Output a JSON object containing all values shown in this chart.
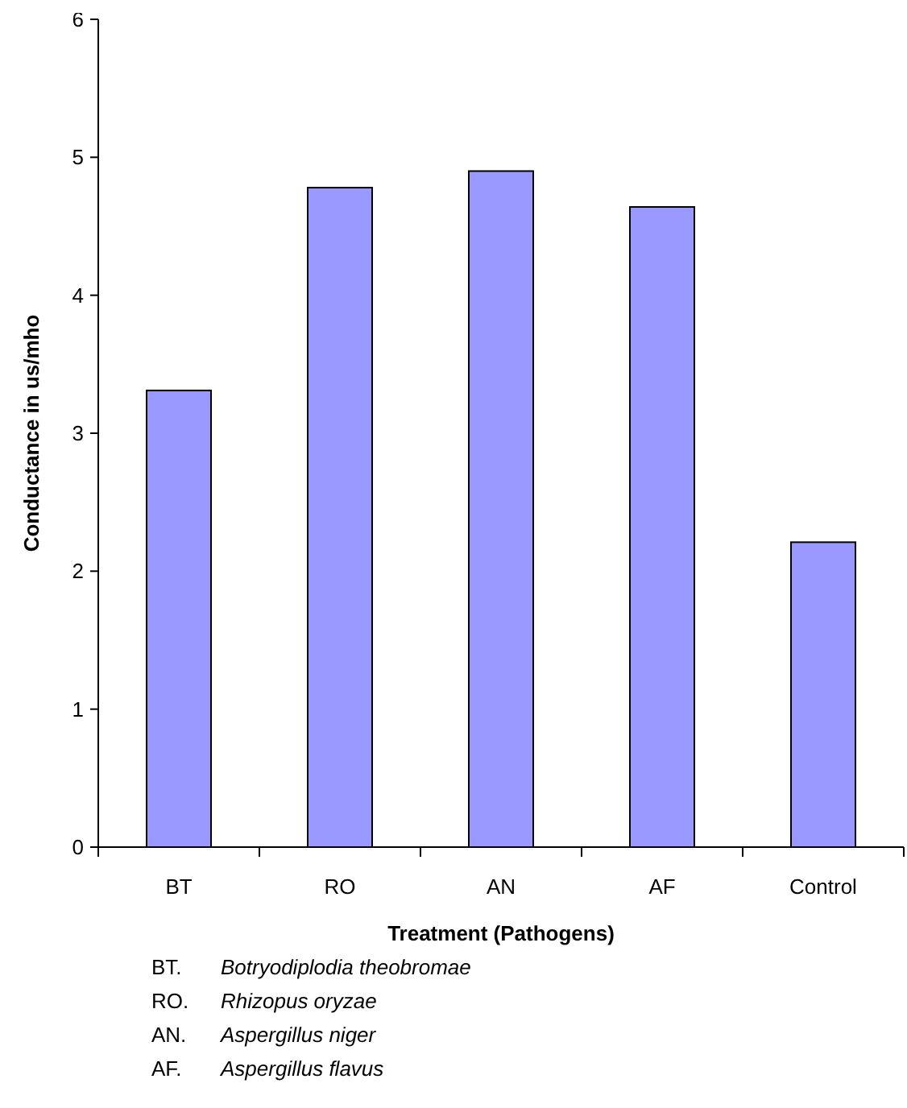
{
  "chart_data": {
    "type": "bar",
    "xlabel": "Treatment (Pathogens)",
    "ylabel": "Conductance in us/mho",
    "categories": [
      "BT",
      "RO",
      "AN",
      "AF",
      "Control"
    ],
    "values": [
      3.31,
      4.78,
      4.9,
      4.64,
      2.21
    ],
    "color": "#9999ff",
    "ylim": [
      0,
      6
    ],
    "yticks": [
      0,
      1,
      2,
      3,
      4,
      5,
      6
    ],
    "grid": false,
    "annotations": [
      "BT. Botryodiplodia theobromae",
      "RO. Rhizopus oryzae",
      "AN. Aspergillus niger",
      "AF. Aspergillus flavus"
    ]
  }
}
